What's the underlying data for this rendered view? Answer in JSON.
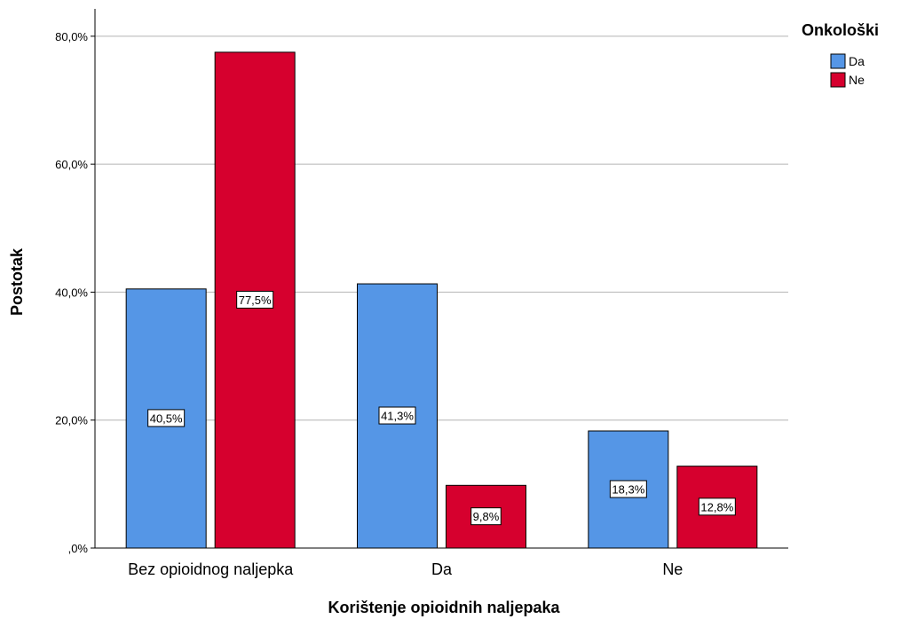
{
  "chart_data": {
    "type": "bar",
    "xlabel": "Korištenje opioidnih naljepaka",
    "ylabel": "Postotak",
    "categories": [
      "Bez opioidnog naljepka",
      "Da",
      "Ne"
    ],
    "series": [
      {
        "name": "Da",
        "values": [
          40.5,
          41.3,
          18.3
        ],
        "labels": [
          "40,5%",
          "41,3%",
          "18,3%"
        ],
        "color": "#5596e6"
      },
      {
        "name": "Ne",
        "values": [
          77.5,
          9.8,
          12.8
        ],
        "labels": [
          "77,5%",
          "9,8%",
          "12,8%"
        ],
        "color": "#d6002e"
      }
    ],
    "ylim": [
      0,
      84
    ],
    "yticks": [
      0,
      20,
      40,
      60,
      80
    ],
    "ytick_labels": [
      ",0%",
      "20,0%",
      "40,0%",
      "60,0%",
      "80,0%"
    ],
    "legend": {
      "title": "Onkološki",
      "placement": "top-right"
    },
    "grid": true
  }
}
